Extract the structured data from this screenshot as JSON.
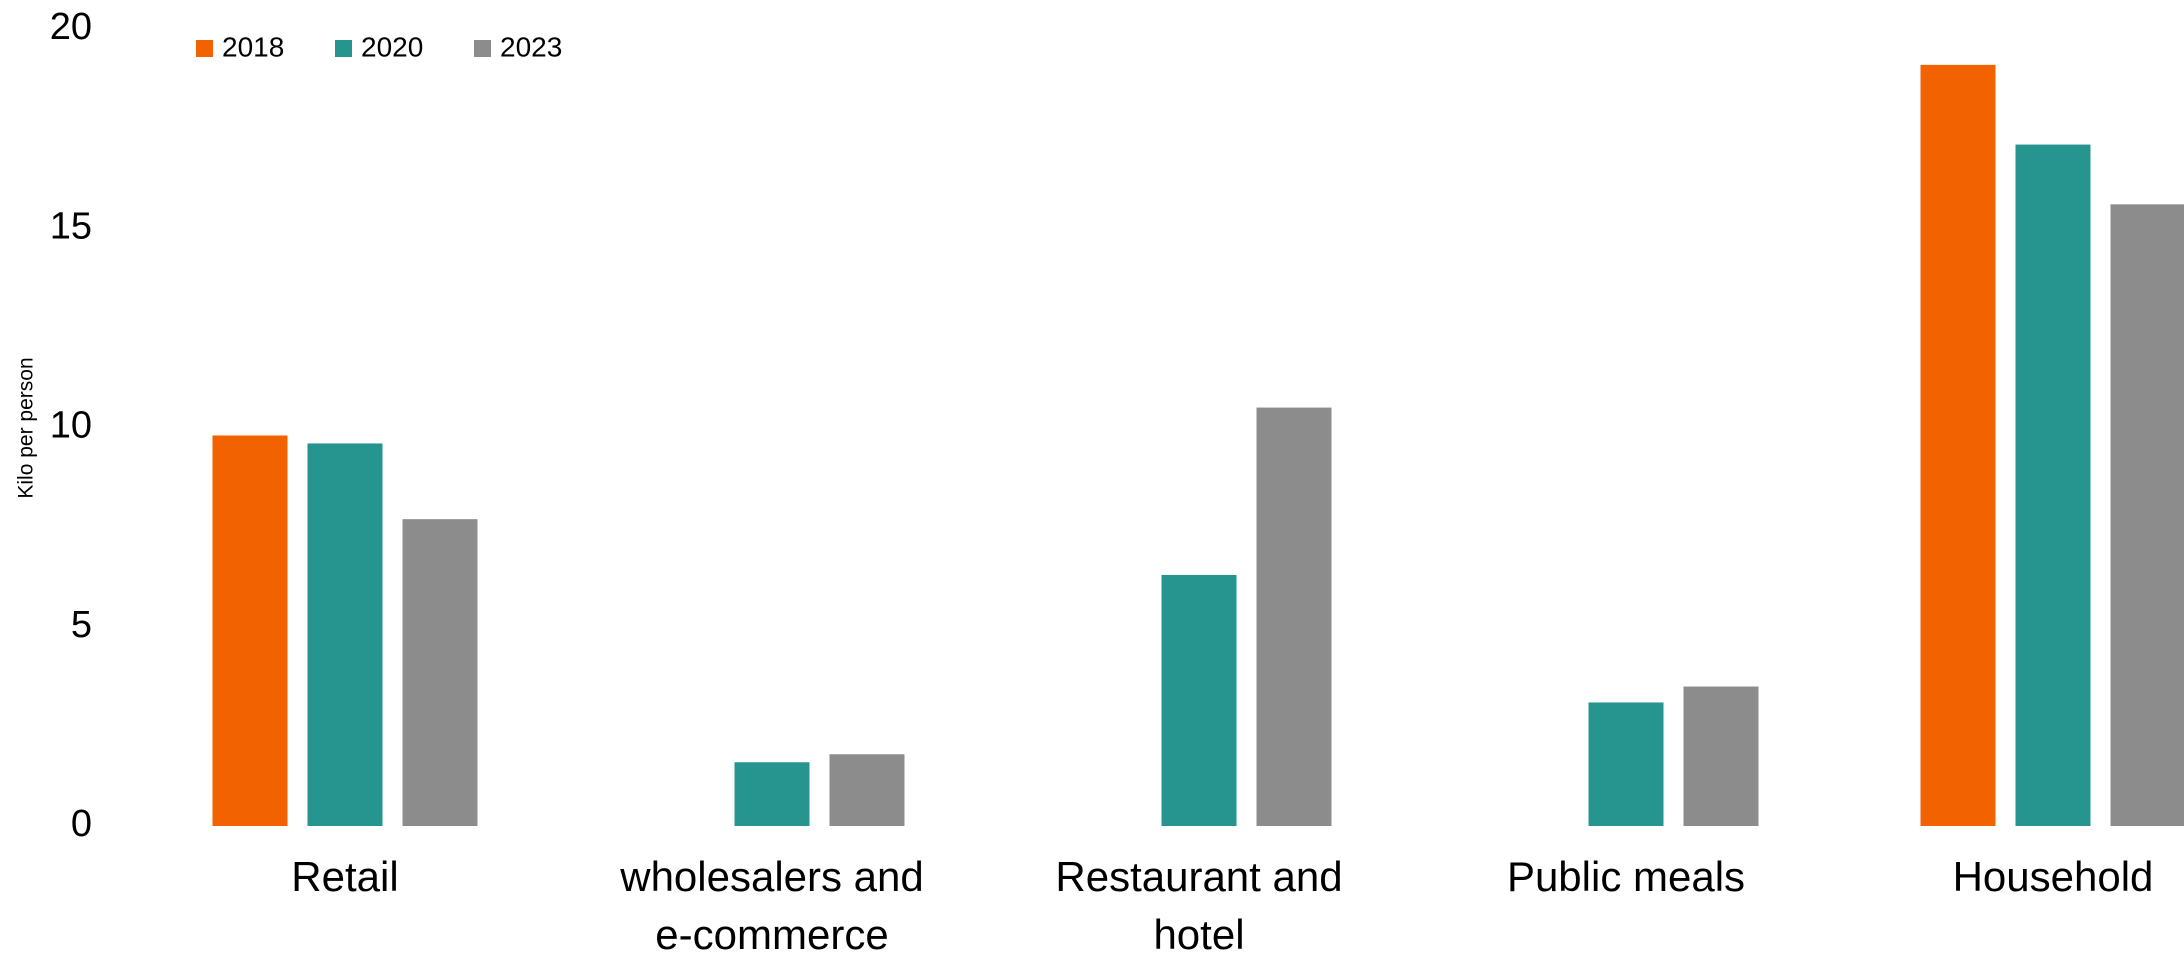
{
  "chart_data": {
    "type": "bar",
    "y_label": "Kilo per person",
    "categories": [
      "Retail",
      "wholesalers and e-commerce",
      "Restaurant and hotel",
      "Public meals",
      "Household"
    ],
    "series": [
      {
        "name": "2018",
        "color": "#f26300",
        "values": [
          9.8,
          null,
          null,
          null,
          19.1
        ]
      },
      {
        "name": "2020",
        "color": "#26958f",
        "values": [
          9.6,
          1.6,
          6.3,
          3.1,
          17.1
        ]
      },
      {
        "name": "2023",
        "color": "#8c8c8c",
        "values": [
          7.7,
          1.8,
          10.5,
          3.5,
          15.6
        ]
      }
    ],
    "ylim": [
      0,
      20
    ],
    "yticks": [
      0,
      5,
      10,
      15,
      20
    ],
    "grid": false,
    "legend": "top-left"
  }
}
